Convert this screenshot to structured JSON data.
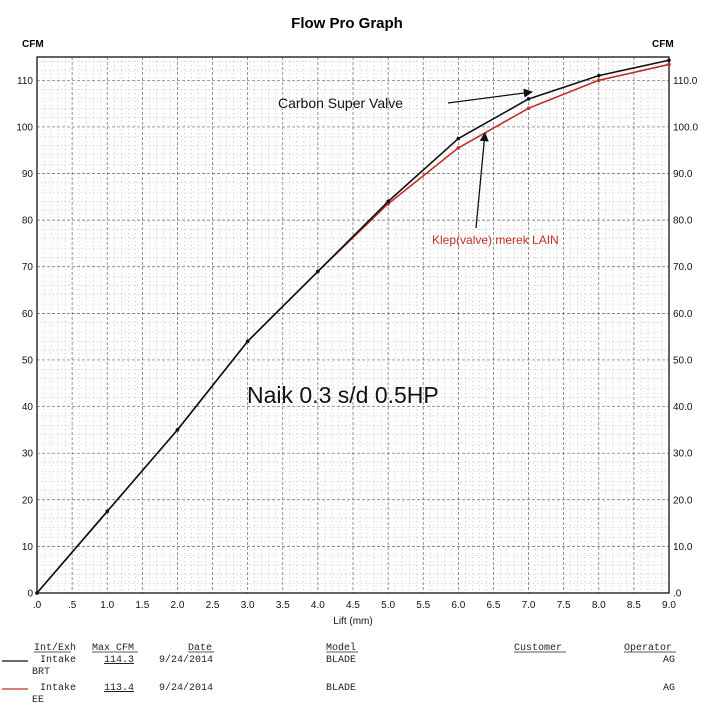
{
  "chart_data": {
    "type": "line",
    "title": "Flow Pro Graph",
    "ylabel_left": "CFM",
    "ylabel_right": "CFM",
    "xlabel": "Lift (mm)",
    "xlim": [
      0,
      9
    ],
    "ylim": [
      0,
      115
    ],
    "x_ticks": [
      ".0",
      ".5",
      "1.0",
      "1.5",
      "2.0",
      "2.5",
      "3.0",
      "3.5",
      "4.0",
      "4.5",
      "5.0",
      "5.5",
      "6.0",
      "6.5",
      "7.0",
      "7.5",
      "8.0",
      "8.5",
      "9.0"
    ],
    "y_ticks_left": [
      "0",
      "10",
      "20",
      "30",
      "40",
      "50",
      "60",
      "70",
      "80",
      "90",
      "100",
      "110"
    ],
    "y_ticks_right": [
      ".0",
      "10.0",
      "20.0",
      "30.0",
      "40.0",
      "50.0",
      "60.0",
      "70.0",
      "80.0",
      "90.0",
      "100.0",
      "110.0"
    ],
    "grid": true,
    "series": [
      {
        "name": "BRT",
        "color": "#111111",
        "x": [
          0,
          1,
          2,
          3,
          4,
          5,
          6,
          7,
          8,
          9
        ],
        "y": [
          0,
          17.5,
          35,
          54,
          69,
          84,
          97.5,
          106,
          111,
          114.3
        ]
      },
      {
        "name": "EE",
        "color": "#c0302a",
        "x": [
          0,
          1,
          2,
          3,
          4,
          5,
          6,
          7,
          8,
          9
        ],
        "y": [
          0,
          17.5,
          35,
          54,
          69,
          83.5,
          95.5,
          104,
          110,
          113.4
        ]
      }
    ],
    "annotations": {
      "carbon_label": "Carbon Super Valve",
      "other_label": "Klep(valve) merek LAIN",
      "note": "Naik 0.3 s/d 0.5HP"
    },
    "table": {
      "headers": [
        "Int/Exh",
        "Max CFM",
        "Date",
        "Model",
        "Customer",
        "Operator"
      ],
      "rows": [
        {
          "intexh": "Intake",
          "name": "BRT",
          "maxcfm": "114.3",
          "date": "9/24/2014",
          "model": "BLADE",
          "customer": "",
          "operator": "AG",
          "color": "#111111"
        },
        {
          "intexh": "Intake",
          "name": "EE",
          "maxcfm": "113.4",
          "date": "9/24/2014",
          "model": "BLADE",
          "customer": "",
          "operator": "AG",
          "color": "#c0302a"
        }
      ]
    }
  }
}
